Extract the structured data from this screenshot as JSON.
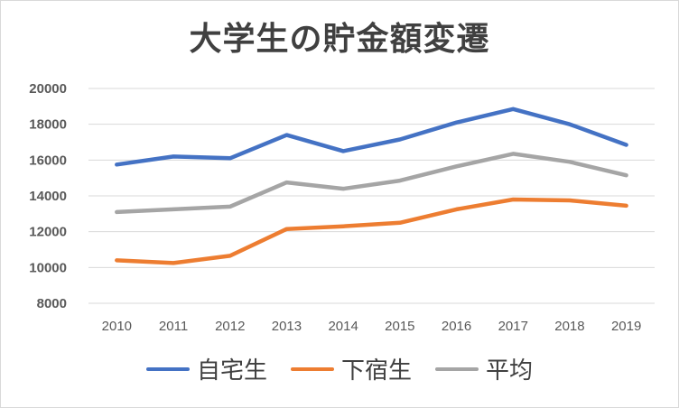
{
  "chart_data": {
    "type": "line",
    "title": "大学生の貯金額変遷",
    "xlabel": "",
    "ylabel": "",
    "categories": [
      "2010",
      "2011",
      "2012",
      "2013",
      "2014",
      "2015",
      "2016",
      "2017",
      "2018",
      "2019"
    ],
    "ylim": [
      8000,
      20000
    ],
    "yticks": [
      "20000",
      "18000",
      "16000",
      "14000",
      "12000",
      "10000",
      "8000"
    ],
    "grid": true,
    "legend": "bottom",
    "series": [
      {
        "name": "自宅生",
        "color": "#4472c4",
        "values": [
          15750,
          16200,
          16100,
          17400,
          16500,
          17150,
          18100,
          18850,
          18000,
          16850
        ]
      },
      {
        "name": "下宿生",
        "color": "#ed7d31",
        "values": [
          10400,
          10250,
          10650,
          12150,
          12300,
          12500,
          13250,
          13800,
          13750,
          13450
        ]
      },
      {
        "name": "平均",
        "color": "#a5a5a5",
        "values": [
          13100,
          13250,
          13400,
          14750,
          14400,
          14850,
          15650,
          16350,
          15900,
          15150
        ]
      }
    ]
  }
}
